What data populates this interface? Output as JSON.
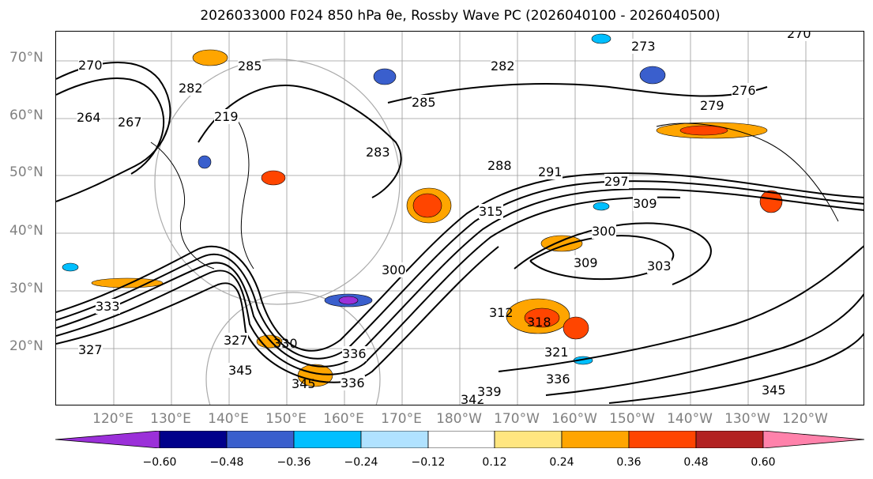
{
  "title": "2026033000 F024 850 hPa θe, Rossby Wave PC (2026040100 - 2026040500)",
  "lat_labels": [
    "70°N",
    "60°N",
    "50°N",
    "40°N",
    "30°N",
    "20°N"
  ],
  "lon_labels": [
    "120°E",
    "130°E",
    "140°E",
    "150°E",
    "160°E",
    "170°E",
    "180°W",
    "170°W",
    "160°W",
    "150°W",
    "140°W",
    "130°W",
    "120°W"
  ],
  "contour_labels": [
    "270",
    "264",
    "267",
    "282",
    "285",
    "219",
    "282",
    "285",
    "283",
    "273",
    "279",
    "276",
    "270",
    "288",
    "291",
    "297",
    "309",
    "300",
    "315",
    "309",
    "303",
    "300",
    "312",
    "318",
    "321",
    "327",
    "330",
    "333",
    "327",
    "345",
    "345",
    "336",
    "336",
    "342",
    "339",
    "345",
    "336"
  ],
  "colorbar": {
    "ticks": [
      "−0.60",
      "−0.48",
      "−0.36",
      "−0.24",
      "−0.12",
      "0.12",
      "0.24",
      "0.36",
      "0.48",
      "0.60"
    ],
    "colors": [
      "#9b30d9",
      "#00008b",
      "#3a5fcd",
      "#00bfff",
      "#b0e2ff",
      "#ffffff",
      "#ffe680",
      "#ffa500",
      "#ff4500",
      "#b22222",
      "#ff82ab"
    ]
  }
}
